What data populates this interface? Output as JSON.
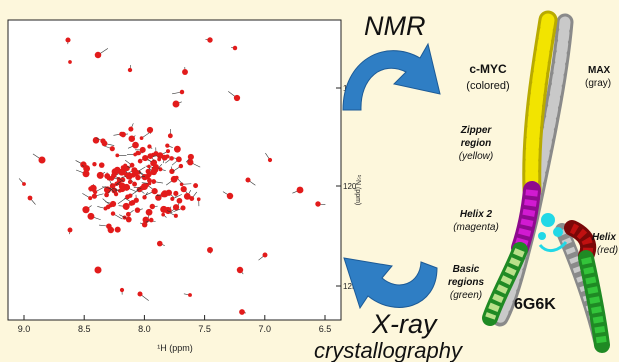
{
  "spectrum": {
    "x_axis_label": "¹H (ppm)",
    "y_axis_label": "¹⁵N (ppm)",
    "x_ticks": [
      "9.0",
      "8.5",
      "8.0",
      "7.5",
      "7.0",
      "6.5"
    ],
    "y_ticks": [
      "115",
      "120",
      "125"
    ]
  },
  "arrows": {
    "nmr_label": "NMR",
    "xray_line1": "X-ray",
    "xray_line2": "crystallography",
    "arrow_color": "#2f7ec4"
  },
  "structure": {
    "cmyc_title": "c-MYC",
    "cmyc_sub": "(colored)",
    "max_title": "MAX",
    "max_sub": "(gray)",
    "zipper_title_1": "Zipper",
    "zipper_title_2": "region",
    "zipper_sub": "(yellow)",
    "helix2_title": "Helix 2",
    "helix2_sub": "(magenta)",
    "helix1_title": "Helix",
    "helix1_sub": "(red)",
    "basic_title_1": "Basic",
    "basic_title_2": "regions",
    "basic_sub": "(green)",
    "pdb_id": "6G6K",
    "colors": {
      "zipper": "#f2e400",
      "helix2": "#d11ad1",
      "helix1": "#c01010",
      "basic": "#33c43a",
      "max": "#a9a9a9",
      "ligand": "#22d8e6"
    }
  }
}
